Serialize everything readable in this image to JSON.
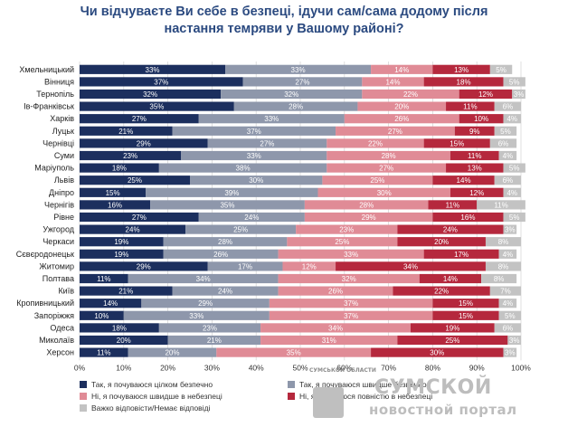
{
  "title_lines": [
    "Чи відчуваєте Ви себе в безпеці, ідучи сам/сама додому після",
    "настання темряви у Вашому районі?"
  ],
  "colors": {
    "series": [
      "#1c2f5e",
      "#8e97ab",
      "#e08b96",
      "#b5283d",
      "#c3c3c3"
    ],
    "title": "#2b4a80",
    "grid": "#d7d7d7"
  },
  "chart_data": {
    "type": "bar",
    "orientation": "horizontal",
    "stacked": true,
    "categories": [
      "Хмельницький",
      "Вінниця",
      "Тернопіль",
      "Ів-Франківськ",
      "Харків",
      "Луцьк",
      "Чернівці",
      "Суми",
      "Маріуполь",
      "Львів",
      "Дніпро",
      "Чернігів",
      "Рівне",
      "Ужгород",
      "Черкаси",
      "Сєвєродонецьк",
      "Житомир",
      "Полтава",
      "Київ",
      "Кропивницький",
      "Запоріжжя",
      "Одеса",
      "Миколаїв",
      "Херсон"
    ],
    "series": [
      {
        "name": "Так, я почуваюся цілком безпечно",
        "values": [
          33,
          37,
          32,
          35,
          27,
          21,
          29,
          23,
          18,
          25,
          15,
          16,
          27,
          24,
          19,
          19,
          29,
          11,
          21,
          14,
          10,
          18,
          20,
          11
        ]
      },
      {
        "name": "Так, я почуваюся швидше безпечно",
        "values": [
          33,
          27,
          32,
          28,
          33,
          37,
          27,
          33,
          38,
          30,
          39,
          35,
          24,
          25,
          28,
          26,
          17,
          34,
          24,
          29,
          33,
          23,
          21,
          20
        ]
      },
      {
        "name": "Ні, я почуваюся швидше в небезпеці",
        "values": [
          14,
          14,
          22,
          20,
          26,
          27,
          22,
          28,
          27,
          25,
          30,
          28,
          29,
          23,
          25,
          33,
          12,
          32,
          26,
          37,
          37,
          34,
          31,
          35
        ]
      },
      {
        "name": "Ні, я почуваюся повністю в небезпеці",
        "values": [
          13,
          18,
          12,
          11,
          10,
          9,
          15,
          11,
          13,
          14,
          12,
          11,
          16,
          24,
          20,
          17,
          34,
          14,
          22,
          15,
          15,
          19,
          25,
          30
        ]
      },
      {
        "name": "Важко відповісти/Немає відповіді",
        "values": [
          5,
          5,
          3,
          6,
          4,
          5,
          6,
          4,
          5,
          6,
          4,
          11,
          5,
          3,
          8,
          4,
          8,
          8,
          7,
          4,
          5,
          6,
          3,
          3
        ]
      }
    ],
    "data_label_format": "{v}%",
    "x_ticks": [
      "0%",
      "10%",
      "20%",
      "30%",
      "40%",
      "50%",
      "60%",
      "70%",
      "80%",
      "90%",
      "100%"
    ],
    "xlim": [
      0,
      100
    ],
    "grid": true,
    "legend_position": "bottom"
  },
  "legend": [
    "Так, я почуваюся цілком безпечно",
    "Так, я почуваюся швидше безпечно",
    "Ні, я почуваюся швидше в небезпеці",
    "Ні, я почуваюся повністю в небезпеці",
    "Важко відповісти/Немає відповіді"
  ],
  "watermark": {
    "small_text": "СУМСЬКОЙ ОБЛАСТИ",
    "big_text": "СУМСКОЙ",
    "sub_text": "новостной портал"
  }
}
